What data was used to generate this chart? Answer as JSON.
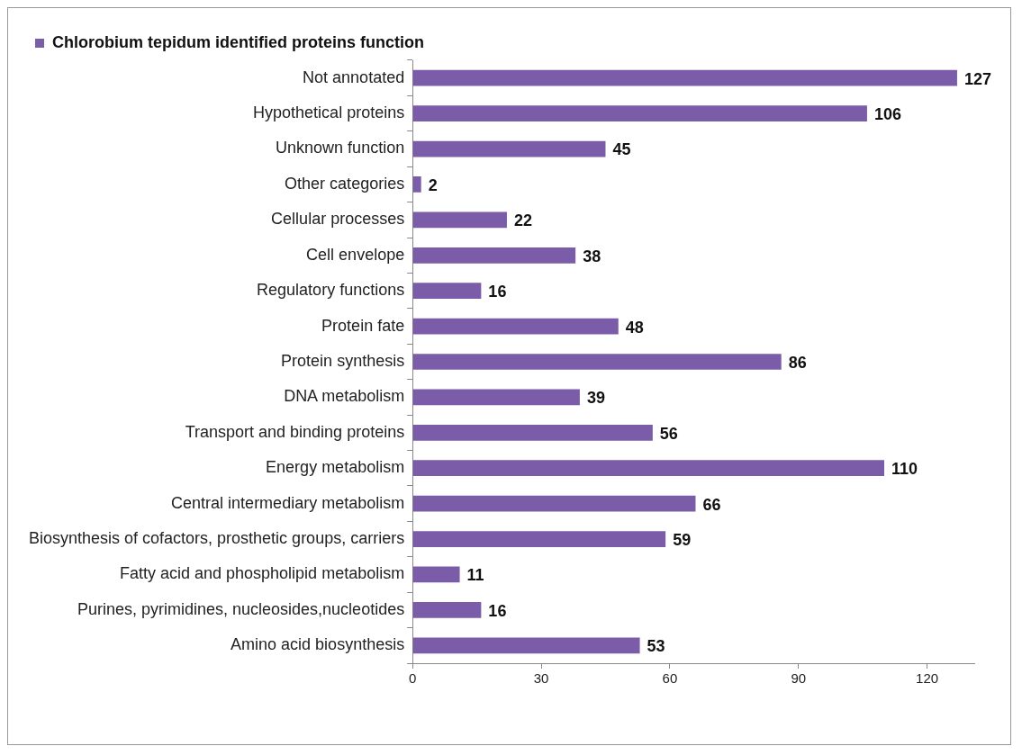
{
  "chart_data": {
    "type": "bar",
    "orientation": "horizontal",
    "categories": [
      "Not annotated",
      "Hypothetical proteins",
      "Unknown function",
      "Other categories",
      "Cellular processes",
      "Cell envelope",
      "Regulatory functions",
      "Protein fate",
      "Protein synthesis",
      "DNA metabolism",
      "Transport and binding proteins",
      "Energy metabolism",
      "Central intermediary metabolism",
      "Biosynthesis of cofactors, prosthetic groups, carriers",
      "Fatty acid and phospholipid metabolism",
      "Purines, pyrimidines, nucleosides,nucleotides",
      "Amino acid biosynthesis"
    ],
    "series": [
      {
        "name": "Chlorobium tepidum identified proteins function",
        "color": "#7b5ca8",
        "values": [
          127,
          106,
          45,
          2,
          22,
          38,
          16,
          48,
          86,
          39,
          56,
          110,
          66,
          59,
          11,
          16,
          53
        ]
      }
    ],
    "xlim": [
      0,
      131
    ],
    "xticks": [
      0,
      30,
      60,
      90,
      120
    ],
    "grid": false,
    "legend": "top left",
    "data_labels": true
  }
}
